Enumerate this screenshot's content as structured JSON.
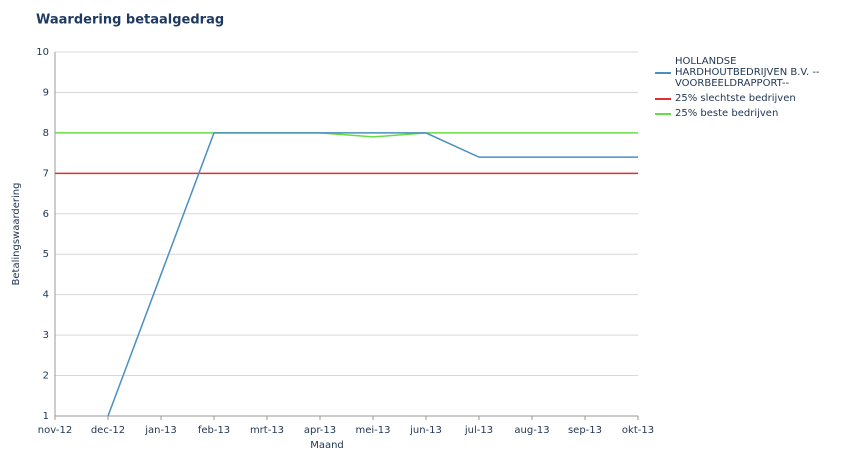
{
  "chart_data": {
    "type": "line",
    "title": "Waardering betaalgedrag",
    "xlabel": "Maand",
    "ylabel": "Betalingswaardering",
    "categories": [
      "nov-12",
      "dec-12",
      "jan-13",
      "feb-13",
      "mrt-13",
      "apr-13",
      "mei-13",
      "jun-13",
      "jul-13",
      "aug-13",
      "sep-13",
      "okt-13"
    ],
    "series": [
      {
        "name": "HOLLANDSE HARDHOUTBEDRIJVEN B.V. --VOORBEELDRAPPORT--",
        "color": "#4a8fc0",
        "values": [
          null,
          1,
          4.5,
          8,
          8,
          8,
          8,
          8,
          7.4,
          7.4,
          7.4,
          7.4
        ]
      },
      {
        "name": "25% slechtste bedrijven",
        "color": "#e03030",
        "values": [
          7,
          7,
          7,
          7,
          7,
          7,
          7,
          7,
          7,
          7,
          7,
          7
        ]
      },
      {
        "name": "25% beste bedrijven",
        "color": "#66dd44",
        "values": [
          8,
          8,
          8,
          8,
          8,
          8,
          7.9,
          8,
          8,
          8,
          8,
          8
        ]
      }
    ],
    "ylim": [
      1,
      10
    ],
    "yticks": [
      1,
      2,
      3,
      4,
      5,
      6,
      7,
      8,
      9,
      10
    ],
    "grid": true
  }
}
